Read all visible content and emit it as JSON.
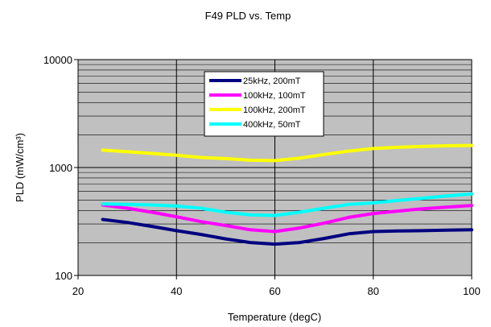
{
  "chart_data": {
    "type": "line",
    "title": "F49 PLD vs. Temp",
    "xlabel": "Temperature (degC)",
    "ylabel": "PLD (mW/cm³)",
    "xlim": [
      20,
      100
    ],
    "ylim": [
      100,
      10000
    ],
    "yscale": "log",
    "x_ticks": [
      20,
      40,
      60,
      80,
      100
    ],
    "y_ticks": [
      100,
      1000,
      10000
    ],
    "grid": true,
    "legend_position": "top-center",
    "plot_background": "#c0c0c0",
    "series": [
      {
        "name": "25kHz, 200mT",
        "color": "#000080",
        "x": [
          25,
          30,
          35,
          40,
          45,
          50,
          55,
          60,
          65,
          70,
          75,
          80,
          85,
          90,
          95,
          100
        ],
        "y": [
          330,
          310,
          285,
          260,
          240,
          218,
          202,
          195,
          202,
          220,
          243,
          255,
          258,
          260,
          263,
          265
        ]
      },
      {
        "name": "100kHz, 100mT",
        "color": "#ff00ff",
        "x": [
          25,
          30,
          35,
          40,
          45,
          50,
          55,
          60,
          65,
          70,
          75,
          80,
          85,
          90,
          95,
          100
        ],
        "y": [
          450,
          420,
          385,
          350,
          315,
          290,
          265,
          255,
          275,
          305,
          345,
          375,
          395,
          415,
          430,
          445
        ]
      },
      {
        "name": "100kHz, 200mT",
        "color": "#ffff00",
        "x": [
          25,
          30,
          35,
          40,
          45,
          50,
          55,
          60,
          65,
          70,
          75,
          80,
          85,
          90,
          95,
          100
        ],
        "y": [
          1450,
          1400,
          1350,
          1300,
          1240,
          1210,
          1170,
          1160,
          1220,
          1320,
          1420,
          1500,
          1540,
          1570,
          1590,
          1600
        ]
      },
      {
        "name": "400kHz, 50mT",
        "color": "#00ffff",
        "x": [
          25,
          30,
          35,
          40,
          45,
          50,
          55,
          60,
          65,
          70,
          75,
          80,
          85,
          90,
          95,
          100
        ],
        "y": [
          460,
          455,
          450,
          440,
          420,
          385,
          365,
          360,
          385,
          420,
          455,
          470,
          495,
          520,
          545,
          570
        ]
      }
    ]
  }
}
